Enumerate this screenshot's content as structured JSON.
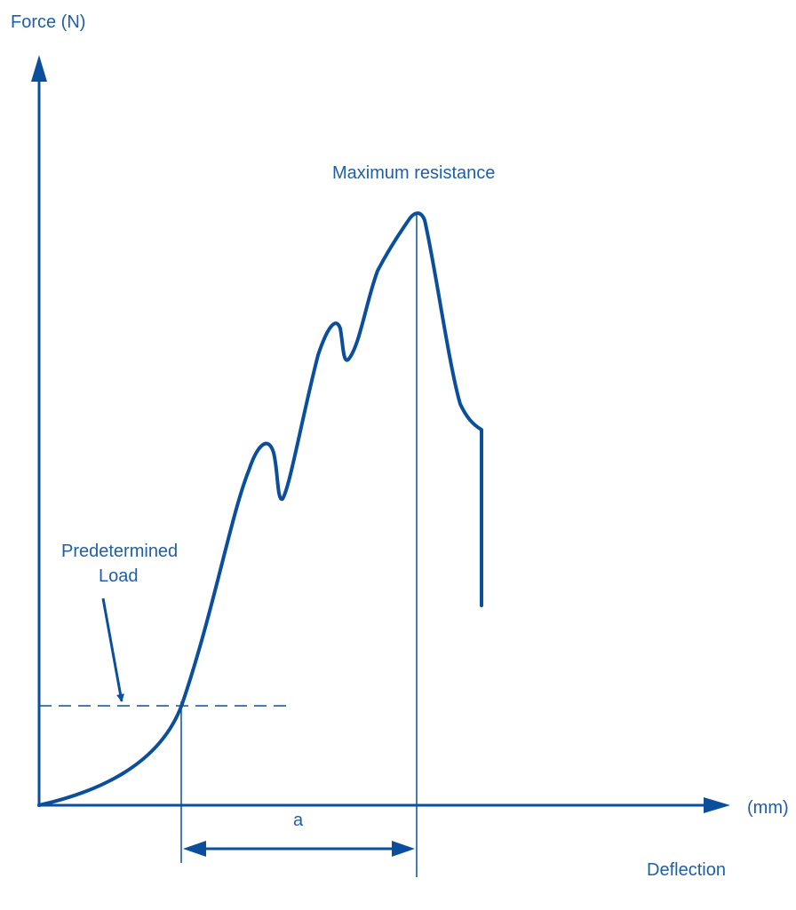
{
  "labels": {
    "y_axis": "Force (N)",
    "x_unit": "(mm)",
    "x_axis": "Deflection",
    "peak": "Maximum resistance",
    "predetermined_line1": "Predetermined",
    "predetermined_line2": "Load",
    "interval": "a"
  },
  "colors": {
    "stroke": "#0b4f9c",
    "text": "#1f5fa6"
  }
}
